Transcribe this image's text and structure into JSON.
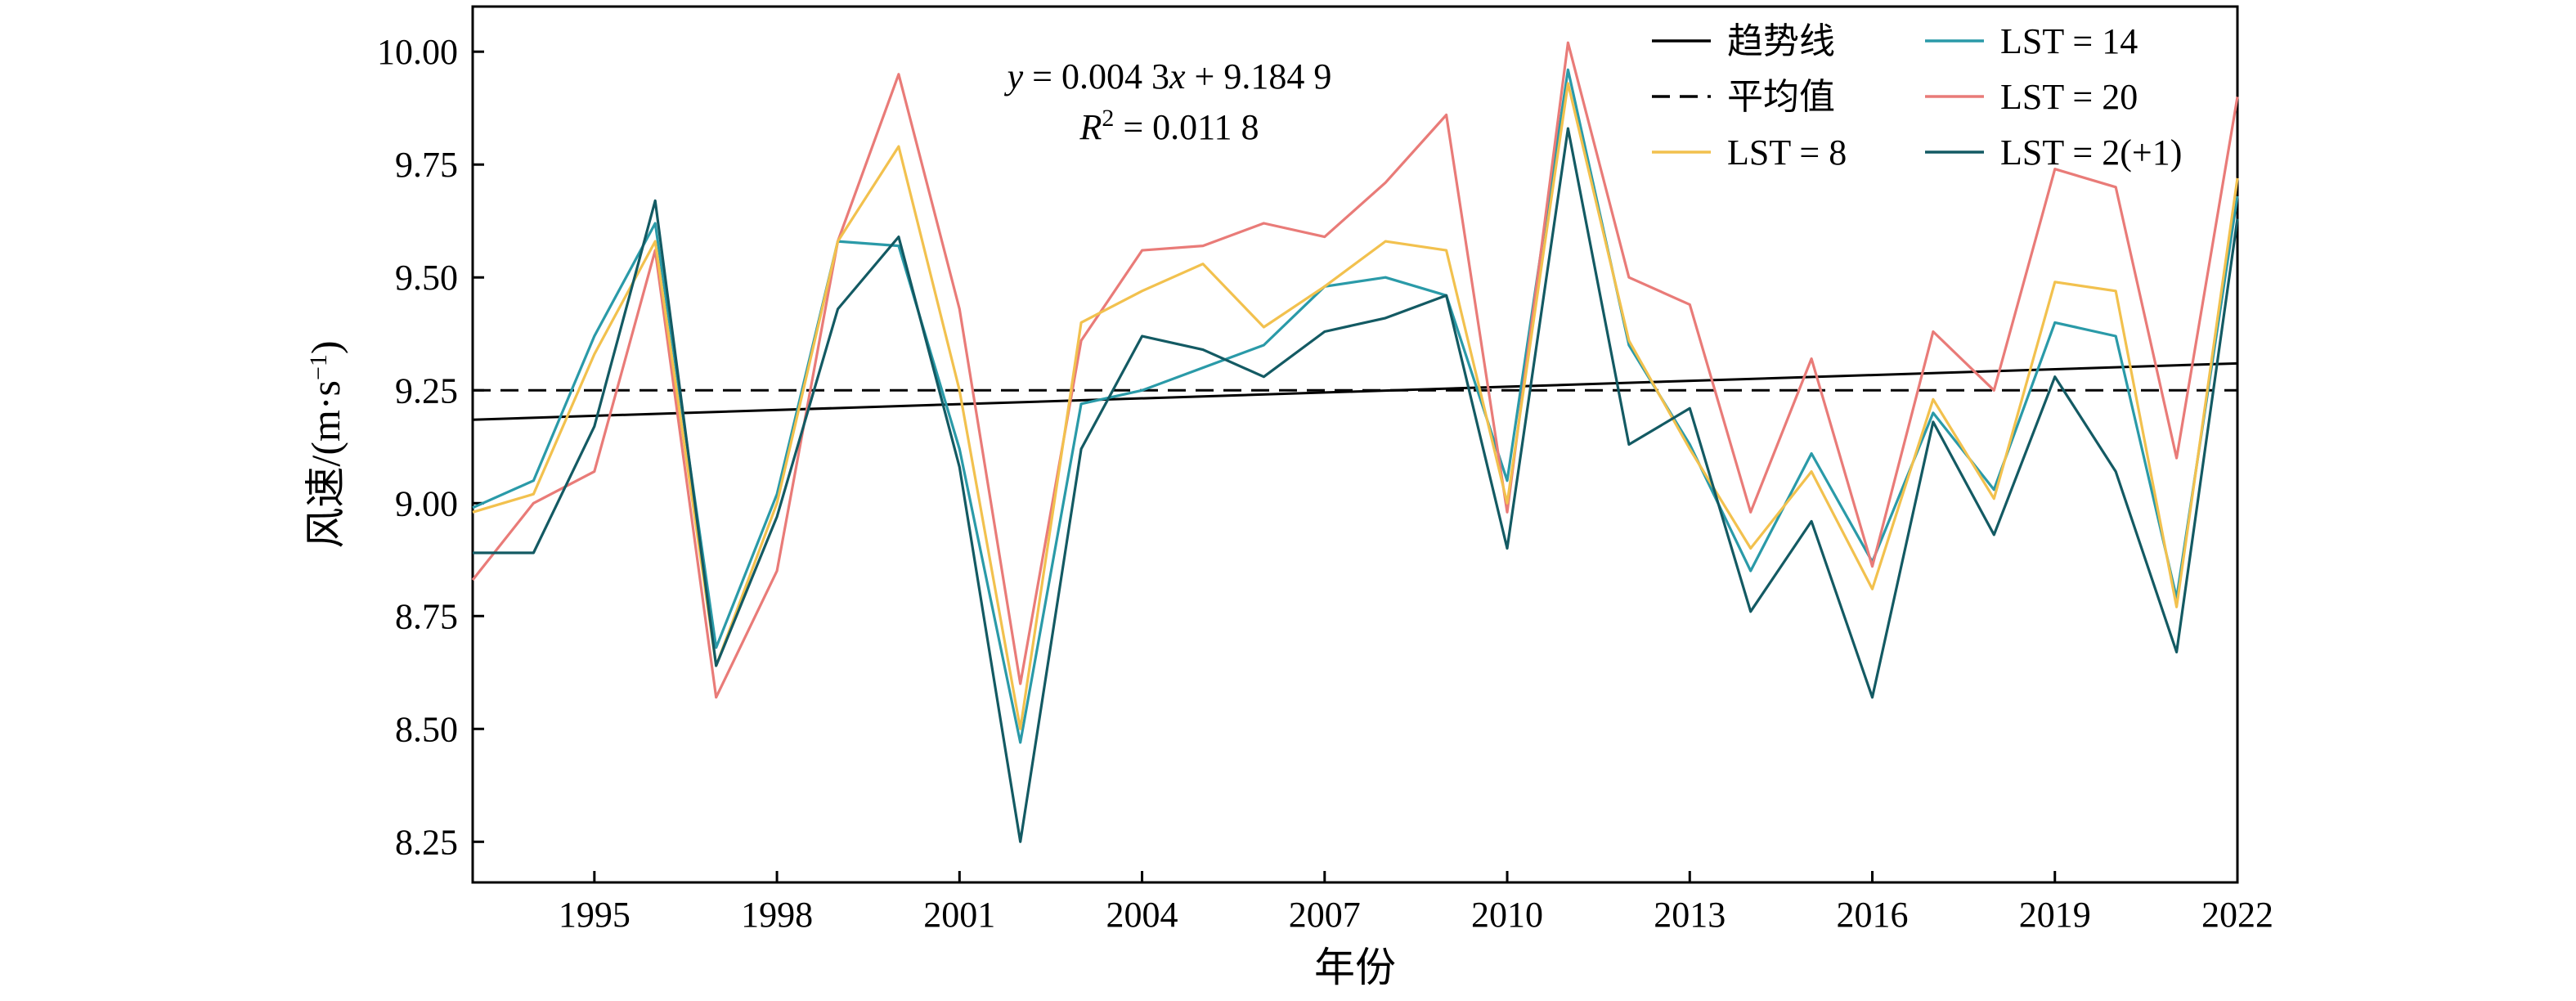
{
  "chart_data": {
    "type": "line",
    "xlabel": "年份",
    "ylabel": "风速/(m·s⁻¹)",
    "ylabel_parts": {
      "main": "风速/(m·s",
      "sup": "−1",
      "end": ")"
    },
    "xlim": [
      1993,
      2022
    ],
    "ylim": [
      8.16,
      10.1
    ],
    "x_ticks": [
      1995,
      1998,
      2001,
      2004,
      2007,
      2010,
      2013,
      2016,
      2019,
      2022
    ],
    "y_ticks": [
      8.25,
      8.5,
      8.75,
      9.0,
      9.25,
      9.5,
      9.75,
      10.0
    ],
    "y_tick_labels": [
      "8.25",
      "8.50",
      "8.75",
      "9.00",
      "9.25",
      "9.50",
      "9.75",
      "10.00"
    ],
    "x": [
      1993,
      1994,
      1995,
      1996,
      1997,
      1998,
      1999,
      2000,
      2001,
      2002,
      2003,
      2004,
      2005,
      2006,
      2007,
      2008,
      2009,
      2010,
      2011,
      2012,
      2013,
      2014,
      2015,
      2016,
      2017,
      2018,
      2019,
      2020,
      2021,
      2022
    ],
    "series": [
      {
        "name": "LST = 14",
        "color": "#2a9aa8",
        "values": [
          8.99,
          9.05,
          9.37,
          9.62,
          8.68,
          9.02,
          9.58,
          9.57,
          9.12,
          8.47,
          9.22,
          9.25,
          9.3,
          9.35,
          9.48,
          9.5,
          9.46,
          9.05,
          9.96,
          9.35,
          9.13,
          8.85,
          9.11,
          8.87,
          9.2,
          9.03,
          9.4,
          9.37,
          8.79,
          9.68
        ]
      },
      {
        "name": "LST = 20",
        "color": "#e97b78",
        "values": [
          8.83,
          9.0,
          9.07,
          9.56,
          8.57,
          8.85,
          9.58,
          9.95,
          9.43,
          8.6,
          9.36,
          9.56,
          9.57,
          9.62,
          9.59,
          9.71,
          9.86,
          8.98,
          10.02,
          9.5,
          9.44,
          8.98,
          9.32,
          8.86,
          9.38,
          9.25,
          9.74,
          9.7,
          9.1,
          9.9
        ]
      },
      {
        "name": "LST = 8",
        "color": "#f2c14e",
        "values": [
          8.98,
          9.02,
          9.33,
          9.58,
          8.64,
          9.0,
          9.58,
          9.79,
          9.25,
          8.5,
          9.4,
          9.47,
          9.53,
          9.39,
          9.48,
          9.58,
          9.56,
          9.0,
          9.93,
          9.36,
          9.12,
          8.9,
          9.07,
          8.81,
          9.23,
          9.01,
          9.49,
          9.47,
          8.77,
          9.72
        ]
      },
      {
        "name": "LST = 2(+1)",
        "color": "#135a63",
        "values": [
          8.89,
          8.89,
          9.17,
          9.67,
          8.64,
          8.97,
          9.43,
          9.59,
          9.08,
          8.25,
          9.12,
          9.37,
          9.34,
          9.28,
          9.38,
          9.41,
          9.46,
          8.9,
          9.83,
          9.13,
          9.21,
          8.76,
          8.96,
          8.57,
          9.18,
          8.93,
          9.28,
          9.07,
          8.67,
          9.63
        ]
      }
    ],
    "trend": {
      "name": "趋势线",
      "slope": 0.0043,
      "intercept_at_1993": 9.1849,
      "color": "#000000"
    },
    "mean": {
      "name": "平均值",
      "value": 9.25,
      "color": "#000000"
    },
    "equation": {
      "line1_var": "y",
      "line1_mid": " = 0.004 3",
      "line1_var2": "x",
      "line1_end": " + 9.184 9",
      "line2_var": "R",
      "line2_sup": "2",
      "line2_end": " = 0.011 8"
    },
    "legend": {
      "position": "top-right",
      "left_column": [
        "趋势线",
        "平均值",
        "LST = 8"
      ],
      "right_column": [
        "LST = 14",
        "LST = 20",
        "LST = 2(+1)"
      ]
    }
  }
}
